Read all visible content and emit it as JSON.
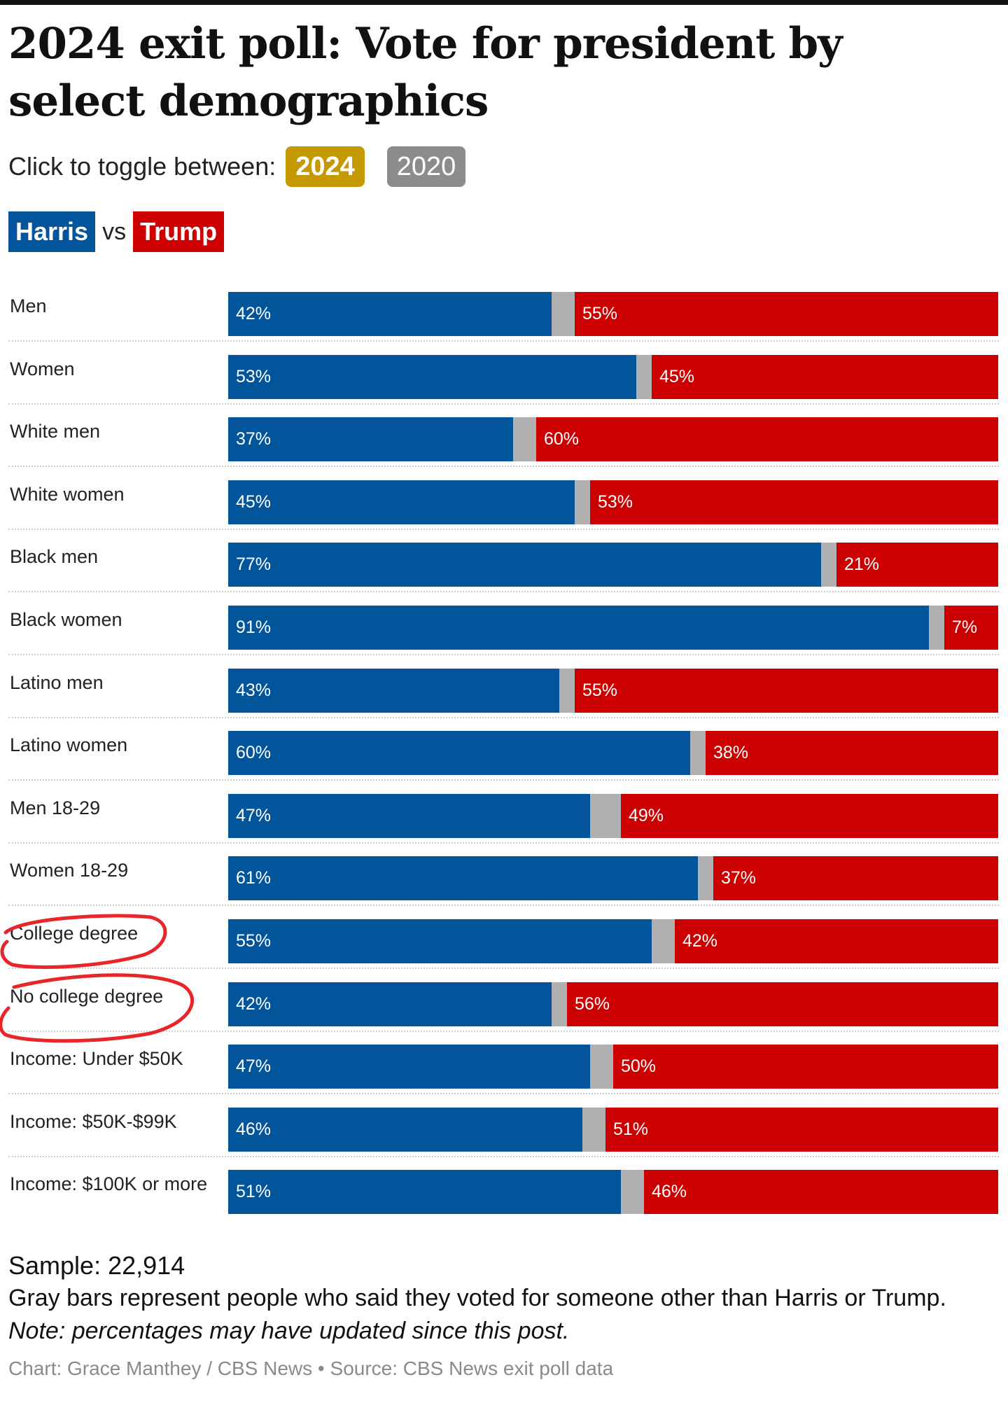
{
  "title": "2024 exit poll: Vote for president by select demographics",
  "toggle": {
    "label": "Click to toggle between:",
    "options": [
      {
        "label": "2024",
        "active": true,
        "color": "#c49a00"
      },
      {
        "label": "2020",
        "active": false,
        "color": "#8c8c8c"
      }
    ]
  },
  "legend": {
    "harris": {
      "label": "Harris",
      "color": "#02549b"
    },
    "vs": "vs",
    "trump": {
      "label": "Trump",
      "color": "#cc0000"
    }
  },
  "colors": {
    "harris": "#02549b",
    "trump": "#cc0000",
    "other": "#b0b0b0"
  },
  "chart_data": {
    "type": "bar",
    "stacked": true,
    "orientation": "horizontal",
    "categories": [
      "Men",
      "Women",
      "White men",
      "White women",
      "Black men",
      "Black women",
      "Latino men",
      "Latino women",
      "Men 18-29",
      "Women 18-29",
      "College degree",
      "No college degree",
      "Income: Under $50K",
      "Income: $50K-$99K",
      "Income: $100K or more"
    ],
    "series": [
      {
        "name": "Harris",
        "values": [
          42,
          53,
          37,
          45,
          77,
          91,
          43,
          60,
          47,
          61,
          55,
          42,
          47,
          46,
          51
        ],
        "labels": [
          "42%",
          "53%",
          "37%",
          "45%",
          "77%",
          "91%",
          "43%",
          "60%",
          "47%",
          "61%",
          "55%",
          "42%",
          "47%",
          "46%",
          "51%"
        ]
      },
      {
        "values": [
          3,
          2,
          3,
          2,
          2,
          2,
          2,
          2,
          4,
          2,
          3,
          2,
          3,
          3,
          3
        ]
      },
      {
        "name": "Trump",
        "values": [
          55,
          45,
          60,
          53,
          21,
          7,
          55,
          38,
          49,
          37,
          42,
          56,
          50,
          51,
          46
        ],
        "labels": [
          "55%",
          "45%",
          "60%",
          "53%",
          "21%",
          "7%",
          "55%",
          "38%",
          "49%",
          "37%",
          "42%",
          "56%",
          "50%",
          "51%",
          "46%"
        ]
      }
    ],
    "xlim": [
      0,
      100
    ],
    "grid": false,
    "highlighted_rows": [
      "College degree",
      "No college degree"
    ]
  },
  "footer": {
    "sample": "Sample: 22,914",
    "description": "Gray bars represent people who said they voted for someone other than Harris or Trump.",
    "note": "Note: percentages may have updated since this post.",
    "credit": "Chart: Grace Manthey / CBS News • Source: CBS News exit poll data"
  }
}
